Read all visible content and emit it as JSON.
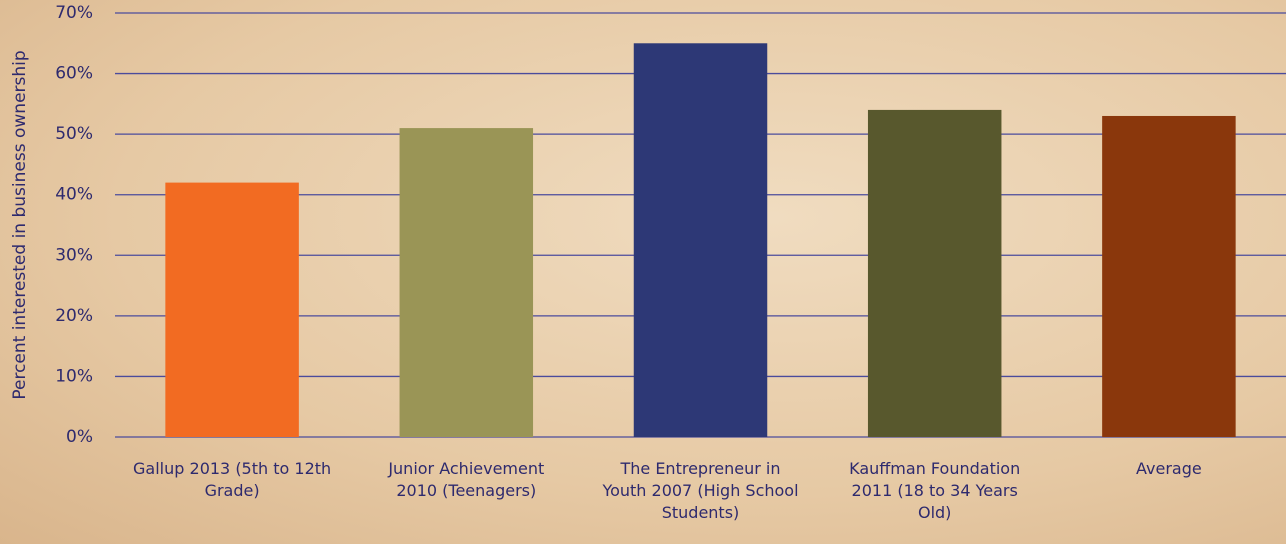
{
  "chart_data": {
    "type": "bar",
    "y_label": "Percent interested in business ownership",
    "categories": [
      "Gallup 2013 (5th to 12th Grade)",
      "Junior Achievement 2010 (Teenagers)",
      "The Entrepreneur in Youth 2007 (High School Students)",
      "Kauffman Foundation 2011 (18 to 34 Years Old)",
      "Average"
    ],
    "values": [
      42,
      51,
      65,
      54,
      53
    ],
    "colors": [
      "#f26b22",
      "#9a9556",
      "#2d3876",
      "#58582d",
      "#8a370c"
    ],
    "ylim": [
      0,
      70
    ],
    "yticks": [
      {
        "value": 0,
        "label": "0%"
      },
      {
        "value": 10,
        "label": "10%"
      },
      {
        "value": 20,
        "label": "20%"
      },
      {
        "value": 30,
        "label": "30%"
      },
      {
        "value": 40,
        "label": "40%"
      },
      {
        "value": 50,
        "label": "50%"
      },
      {
        "value": 60,
        "label": "60%"
      },
      {
        "value": 70,
        "label": "70%"
      }
    ],
    "grid": true
  }
}
